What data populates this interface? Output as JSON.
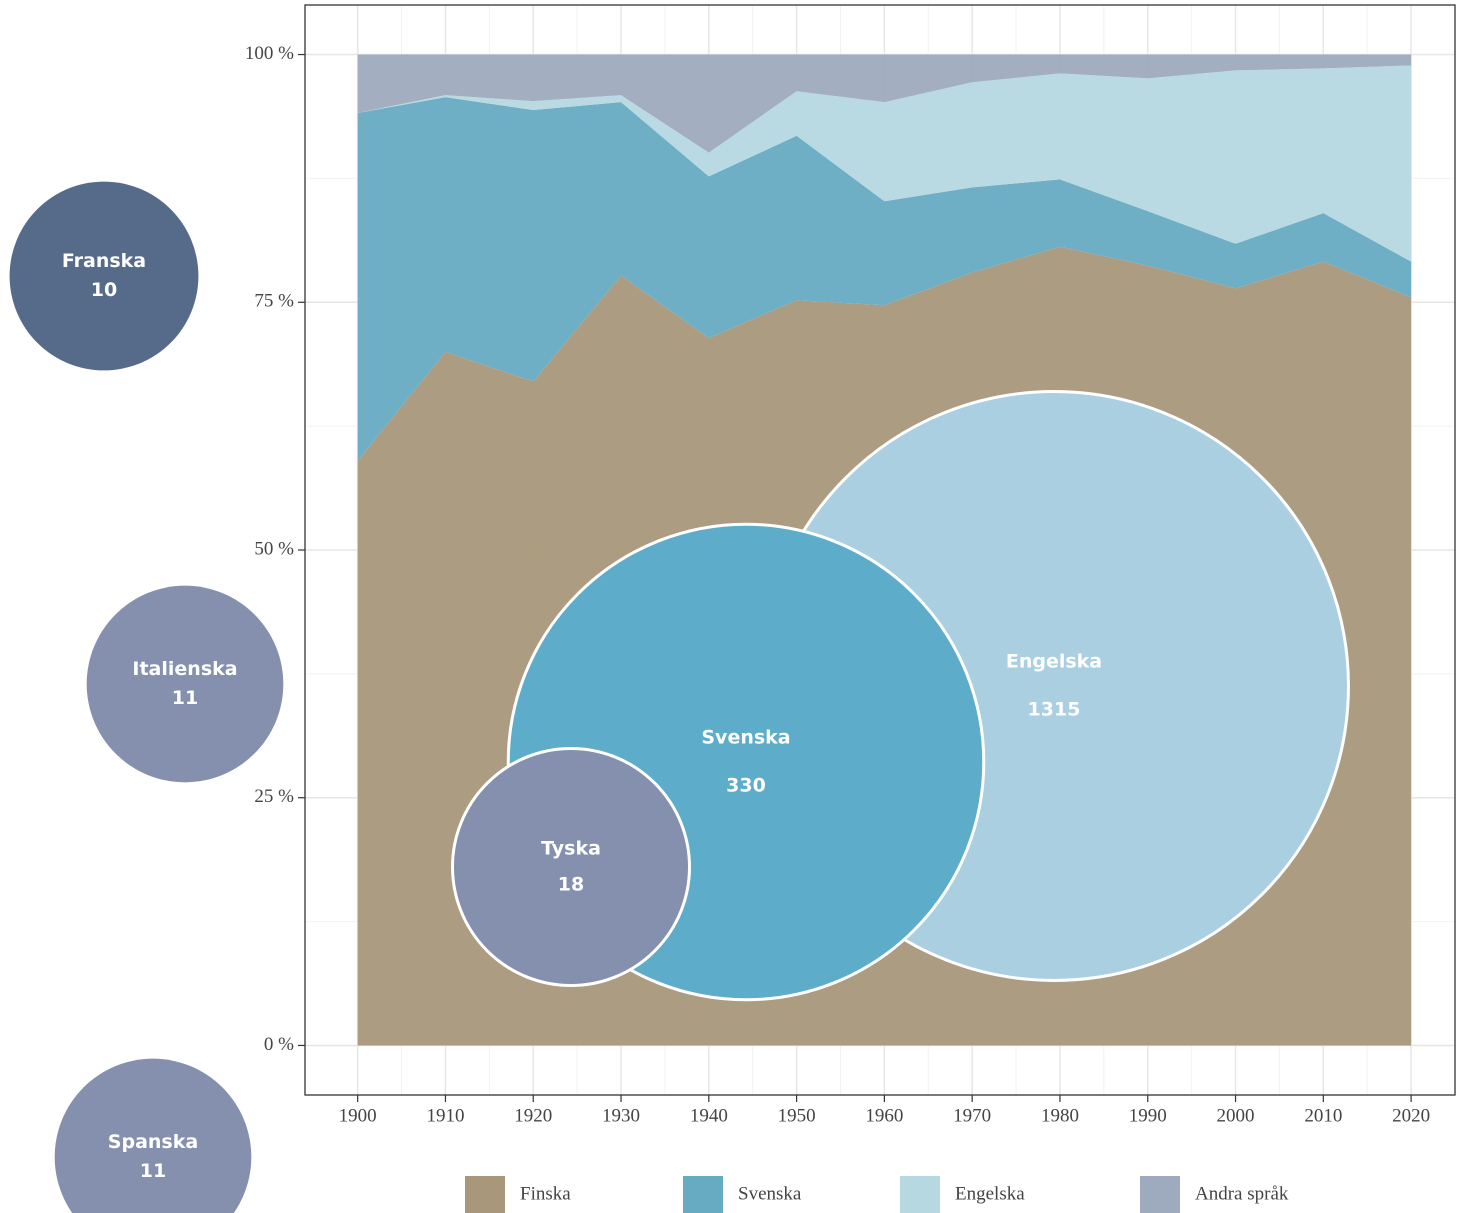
{
  "chart_data": {
    "type": "stacked_area",
    "x": [
      1900,
      1910,
      1920,
      1930,
      1940,
      1950,
      1960,
      1970,
      1980,
      1990,
      2000,
      2010,
      2020
    ],
    "series": [
      {
        "name": "Finska",
        "color": "#a8977a",
        "values": [
          59.0,
          70.0,
          67.0,
          77.7,
          71.4,
          75.2,
          74.7,
          78.0,
          80.6,
          78.7,
          76.4,
          79.1,
          75.5
        ]
      },
      {
        "name": "Svenska",
        "color": "#67abc3",
        "values": [
          35.1,
          25.7,
          27.4,
          17.5,
          16.3,
          16.6,
          10.5,
          8.6,
          6.8,
          5.5,
          4.5,
          4.9,
          3.6
        ]
      },
      {
        "name": "Engelska",
        "color": "#b6d8e1",
        "values": [
          0,
          0.2,
          0.9,
          0.7,
          2.4,
          4.5,
          10.0,
          10.6,
          10.7,
          13.4,
          17.5,
          14.6,
          19.8
        ]
      },
      {
        "name": "Andra språk",
        "color": "#9eaabd",
        "values": [
          5.9,
          4.1,
          4.7,
          4.1,
          9.9,
          3.7,
          4.8,
          2.8,
          1.9,
          2.4,
          1.6,
          1.4,
          1.1
        ]
      }
    ],
    "xlim": [
      1894,
      2025
    ],
    "xticks": [
      1900,
      1910,
      1920,
      1930,
      1940,
      1950,
      1960,
      1970,
      1980,
      1990,
      2000,
      2010,
      2020
    ],
    "ylim": [
      -5,
      105
    ],
    "yticks": [
      {
        "value": 0,
        "label": "0 %"
      },
      {
        "value": 25,
        "label": "25 %"
      },
      {
        "value": 50,
        "label": "50 %"
      },
      {
        "value": 75,
        "label": "75 %"
      },
      {
        "value": 100,
        "label": "100 %"
      }
    ],
    "grid": true,
    "legend": "bottom",
    "bubbles": [
      {
        "name": "Franska",
        "value": 10,
        "color": "#566a8a"
      },
      {
        "name": "Italienska",
        "value": 11,
        "color": "#8490ae"
      },
      {
        "name": "Spanska",
        "value": 11,
        "color": "#8490ae"
      },
      {
        "name": "Engelska",
        "value": 1315,
        "color": "#a9cfe1"
      },
      {
        "name": "Svenska",
        "value": 330,
        "color": "#5dadca"
      },
      {
        "name": "Tyska",
        "value": 18,
        "color": "#8490ae"
      }
    ]
  }
}
